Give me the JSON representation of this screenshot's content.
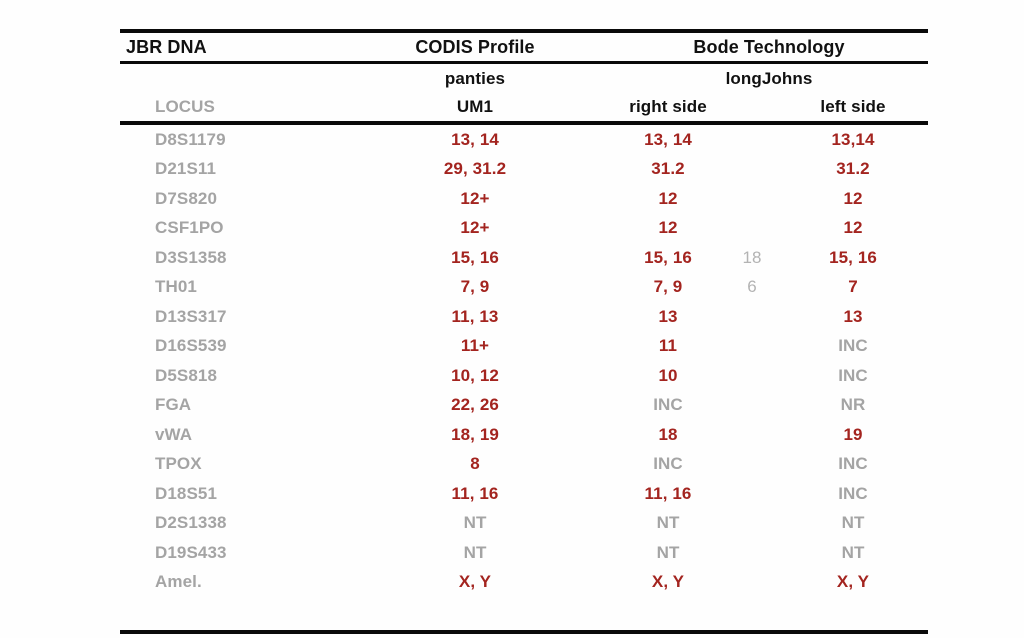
{
  "table": {
    "colors": {
      "red": "#a3241f",
      "gray": "#a4a4a4",
      "lightgray": "#b3b3b3",
      "black": "#111111"
    },
    "title_row": {
      "sample": "JBR DNA",
      "codis": "CODIS Profile",
      "bode": "Bode Technology"
    },
    "subtitle_row": {
      "codis_source": "panties",
      "bode_source": "longJohns"
    },
    "header_row": {
      "locus": "LOCUS",
      "codis": "UM1",
      "right": "right side",
      "left": "left side"
    },
    "rows": [
      {
        "locus": "D8S1179",
        "cells": [
          {
            "text": "13, 14",
            "color": "red"
          },
          {
            "text": "13, 14",
            "color": "red"
          },
          {
            "text": "",
            "color": "lightgray"
          },
          {
            "text": "13,14",
            "color": "red"
          }
        ]
      },
      {
        "locus": "D21S11",
        "cells": [
          {
            "text": "29, 31.2",
            "color": "red"
          },
          {
            "text": "31.2",
            "color": "red"
          },
          {
            "text": "",
            "color": "lightgray"
          },
          {
            "text": "31.2",
            "color": "red"
          }
        ]
      },
      {
        "locus": "D7S820",
        "cells": [
          {
            "text": "12+",
            "color": "red"
          },
          {
            "text": "12",
            "color": "red"
          },
          {
            "text": "",
            "color": "lightgray"
          },
          {
            "text": "12",
            "color": "red"
          }
        ]
      },
      {
        "locus": "CSF1PO",
        "cells": [
          {
            "text": "12+",
            "color": "red"
          },
          {
            "text": "12",
            "color": "red"
          },
          {
            "text": "",
            "color": "lightgray"
          },
          {
            "text": "12",
            "color": "red"
          }
        ]
      },
      {
        "locus": "D3S1358",
        "cells": [
          {
            "text": "15, 16",
            "color": "red"
          },
          {
            "text": "15, 16",
            "color": "red"
          },
          {
            "text": "18",
            "color": "lightgray"
          },
          {
            "text": "15, 16",
            "color": "red"
          }
        ]
      },
      {
        "locus": "TH01",
        "cells": [
          {
            "text": "7, 9",
            "color": "red"
          },
          {
            "text": "7, 9",
            "color": "red"
          },
          {
            "text": "6",
            "color": "lightgray"
          },
          {
            "text": "7",
            "color": "red"
          }
        ]
      },
      {
        "locus": "D13S317",
        "cells": [
          {
            "text": "11, 13",
            "color": "red"
          },
          {
            "text": "13",
            "color": "red"
          },
          {
            "text": "",
            "color": "lightgray"
          },
          {
            "text": "13",
            "color": "red"
          }
        ]
      },
      {
        "locus": "D16S539",
        "cells": [
          {
            "text": "11+",
            "color": "red"
          },
          {
            "text": "11",
            "color": "red"
          },
          {
            "text": "",
            "color": "lightgray"
          },
          {
            "text": "INC",
            "color": "gray"
          }
        ]
      },
      {
        "locus": "D5S818",
        "cells": [
          {
            "text": "10, 12",
            "color": "red"
          },
          {
            "text": "10",
            "color": "red"
          },
          {
            "text": "",
            "color": "lightgray"
          },
          {
            "text": "INC",
            "color": "gray"
          }
        ]
      },
      {
        "locus": "FGA",
        "cells": [
          {
            "text": "22, 26",
            "color": "red"
          },
          {
            "text": "INC",
            "color": "gray"
          },
          {
            "text": "",
            "color": "lightgray"
          },
          {
            "text": "NR",
            "color": "gray"
          }
        ]
      },
      {
        "locus": "vWA",
        "cells": [
          {
            "text": "18, 19",
            "color": "red"
          },
          {
            "text": "18",
            "color": "red"
          },
          {
            "text": "",
            "color": "lightgray"
          },
          {
            "text": "19",
            "color": "red"
          }
        ]
      },
      {
        "locus": "TPOX",
        "cells": [
          {
            "text": "8",
            "color": "red"
          },
          {
            "text": "INC",
            "color": "gray"
          },
          {
            "text": "",
            "color": "lightgray"
          },
          {
            "text": "INC",
            "color": "gray"
          }
        ]
      },
      {
        "locus": "D18S51",
        "cells": [
          {
            "text": "11, 16",
            "color": "red"
          },
          {
            "text": "11, 16",
            "color": "red"
          },
          {
            "text": "",
            "color": "lightgray"
          },
          {
            "text": "INC",
            "color": "gray"
          }
        ]
      },
      {
        "locus": "D2S1338",
        "cells": [
          {
            "text": "NT",
            "color": "gray"
          },
          {
            "text": "NT",
            "color": "gray"
          },
          {
            "text": "",
            "color": "lightgray"
          },
          {
            "text": "NT",
            "color": "gray"
          }
        ]
      },
      {
        "locus": "D19S433",
        "cells": [
          {
            "text": "NT",
            "color": "gray"
          },
          {
            "text": "NT",
            "color": "gray"
          },
          {
            "text": "",
            "color": "lightgray"
          },
          {
            "text": "NT",
            "color": "gray"
          }
        ]
      },
      {
        "locus": "Amel.",
        "cells": [
          {
            "text": "X, Y",
            "color": "red"
          },
          {
            "text": "X, Y",
            "color": "red"
          },
          {
            "text": "",
            "color": "lightgray"
          },
          {
            "text": "X, Y",
            "color": "red"
          }
        ]
      }
    ]
  }
}
